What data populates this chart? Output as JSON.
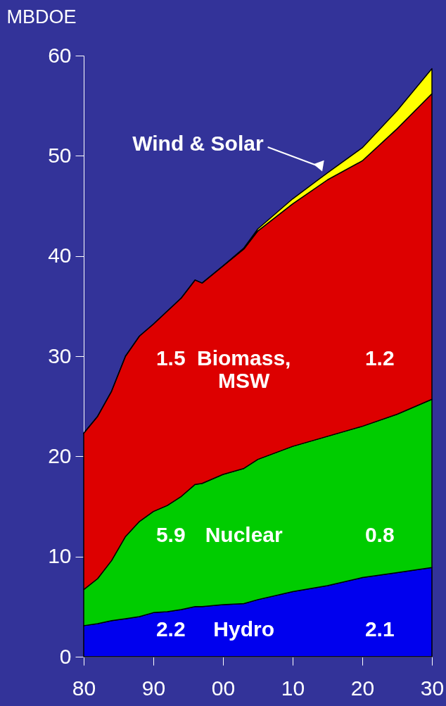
{
  "chart_data": {
    "type": "area",
    "stacked": true,
    "ylabel": "MBDOE",
    "x": [
      1980,
      1982,
      1984,
      1986,
      1988,
      1990,
      1992,
      1994,
      1996,
      1997,
      2000,
      2003,
      2005,
      2010,
      2015,
      2020,
      2025,
      2030
    ],
    "series": [
      {
        "name": "Hydro",
        "color": "#0000ee",
        "values": [
          3.1,
          3.3,
          3.6,
          3.8,
          4.0,
          4.4,
          4.5,
          4.7,
          5.0,
          5.0,
          5.2,
          5.3,
          5.7,
          6.5,
          7.1,
          7.9,
          8.4,
          8.9
        ]
      },
      {
        "name": "Nuclear",
        "color": "#00cc00",
        "values": [
          3.6,
          4.5,
          6.0,
          8.2,
          9.5,
          10.1,
          10.6,
          11.3,
          12.2,
          12.3,
          13.0,
          13.5,
          14.0,
          14.5,
          14.9,
          15.1,
          15.8,
          16.8
        ]
      },
      {
        "name": "Biomass, MSW",
        "color": "#dd0000",
        "values": [
          15.6,
          16.2,
          16.9,
          18.0,
          18.5,
          18.7,
          19.4,
          19.8,
          20.4,
          20.0,
          20.8,
          21.9,
          22.8,
          24.2,
          25.6,
          26.5,
          28.5,
          30.5
        ]
      },
      {
        "name": "Wind & Solar",
        "color": "#ffff00",
        "values": [
          0,
          0,
          0,
          0,
          0,
          0,
          0,
          0,
          0,
          0,
          0,
          0.1,
          0.2,
          0.5,
          0.7,
          1.3,
          1.8,
          2.5
        ]
      }
    ],
    "xlim": [
      1980,
      2030
    ],
    "xticks": [
      {
        "value": 1980,
        "label": "80"
      },
      {
        "value": 1990,
        "label": "90"
      },
      {
        "value": 2000,
        "label": "00"
      },
      {
        "value": 2010,
        "label": "10"
      },
      {
        "value": 2020,
        "label": "20"
      },
      {
        "value": 2030,
        "label": "30"
      }
    ],
    "ylim": [
      0,
      60
    ],
    "yticks": [
      0,
      10,
      20,
      30,
      40,
      50,
      60
    ],
    "annotations": [
      "1.5",
      "1.2",
      "5.9",
      "0.8",
      "2.2",
      "2.1"
    ]
  }
}
